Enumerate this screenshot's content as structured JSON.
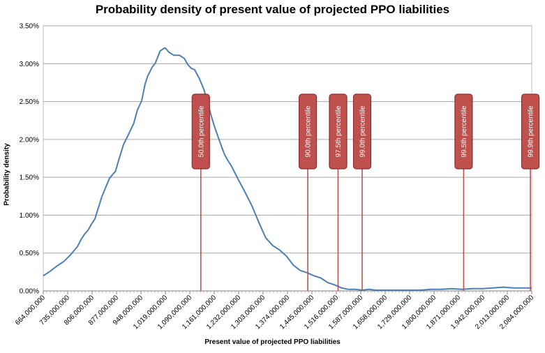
{
  "chart_data": {
    "type": "line",
    "title": "Probability density of present value of projected PPO liabilities",
    "xlabel": "Present value of projected PPO liabilities",
    "ylabel": "Probability density",
    "xlim": [
      664000000,
      2084000000
    ],
    "ylim": [
      0,
      0.035
    ],
    "x_ticks": [
      "664,000,000",
      "735,000,000",
      "806,000,000",
      "877,000,000",
      "948,000,000",
      "1,019,000,000",
      "1,090,000,000",
      "1,161,000,000",
      "1,232,000,000",
      "1,303,000,000",
      "1,374,000,000",
      "1,445,000,000",
      "1,516,000,000",
      "1,587,000,000",
      "1,658,000,000",
      "1,729,000,000",
      "1,800,000,000",
      "1,871,000,000",
      "1,942,000,000",
      "2,013,000,000",
      "2,084,000,000"
    ],
    "y_ticks": [
      "0.00%",
      "0.50%",
      "1.00%",
      "1.50%",
      "2.00%",
      "2.50%",
      "3.00%",
      "3.50%"
    ],
    "grid": true,
    "series_color": "#4a7ebb",
    "marker_color": "#c0504d",
    "series": [
      {
        "x": [
          664000000,
          684000000,
          704000000,
          724000000,
          744000000,
          764000000,
          774000000,
          784000000,
          794000000,
          804000000,
          814000000,
          834000000,
          844000000,
          857000000,
          874000000,
          884000000,
          897000000,
          912000000,
          927000000,
          937000000,
          950000000,
          960000000,
          967000000,
          980000000,
          990000000,
          1004000000,
          1018000000,
          1030000000,
          1044000000,
          1060000000,
          1074000000,
          1084000000,
          1094000000,
          1104000000,
          1117000000,
          1131000000,
          1141000000,
          1151000000,
          1161000000,
          1171000000,
          1181000000,
          1191000000,
          1201000000,
          1211000000,
          1231000000,
          1251000000,
          1271000000,
          1291000000,
          1311000000,
          1331000000,
          1351000000,
          1371000000,
          1391000000,
          1411000000,
          1431000000,
          1451000000,
          1471000000,
          1491000000,
          1511000000,
          1531000000,
          1551000000,
          1571000000,
          1591000000,
          1611000000,
          1631000000,
          1651000000,
          1671000000,
          1701000000,
          1731000000,
          1761000000,
          1791000000,
          1821000000,
          1851000000,
          1881000000,
          1911000000,
          1941000000,
          1971000000,
          2001000000,
          2031000000,
          2061000000,
          2071000000,
          2084000000
        ],
        "y": [
          0.002,
          0.0026,
          0.0033,
          0.0039,
          0.0048,
          0.0059,
          0.0068,
          0.0075,
          0.008,
          0.0088,
          0.0095,
          0.0124,
          0.0135,
          0.0149,
          0.0158,
          0.0174,
          0.0193,
          0.0207,
          0.0221,
          0.0238,
          0.0251,
          0.0273,
          0.0283,
          0.0295,
          0.0301,
          0.0317,
          0.0321,
          0.0315,
          0.0311,
          0.0311,
          0.0307,
          0.0299,
          0.0294,
          0.0292,
          0.0281,
          0.0266,
          0.025,
          0.0233,
          0.0218,
          0.0205,
          0.0192,
          0.018,
          0.0172,
          0.0165,
          0.0147,
          0.013,
          0.0112,
          0.009,
          0.007,
          0.006,
          0.0054,
          0.0046,
          0.0034,
          0.0027,
          0.0024,
          0.002,
          0.0017,
          0.0011,
          0.0008,
          0.0004,
          0.0002,
          0.0002,
          0.0001,
          0.0002,
          0.0001,
          0.0001,
          0.0001,
          0.0001,
          0.0001,
          0.0001,
          0.0002,
          0.0002,
          0.0003,
          0.0002,
          0.0003,
          0.0003,
          0.0004,
          0.0005,
          0.0004,
          0.0004,
          0.0004,
          0.0004
        ]
      }
    ],
    "percentile_markers": [
      {
        "label": "50.0th percentile",
        "x": 1122000000
      },
      {
        "label": "90.0th percentile",
        "x": 1433000000
      },
      {
        "label": "97.5th percentile",
        "x": 1521000000
      },
      {
        "label": "99.0th percentile",
        "x": 1591000000
      },
      {
        "label": "99.5th percentile",
        "x": 1886000000
      },
      {
        "label": "99.9th percentile",
        "x": 2080000000
      }
    ]
  }
}
